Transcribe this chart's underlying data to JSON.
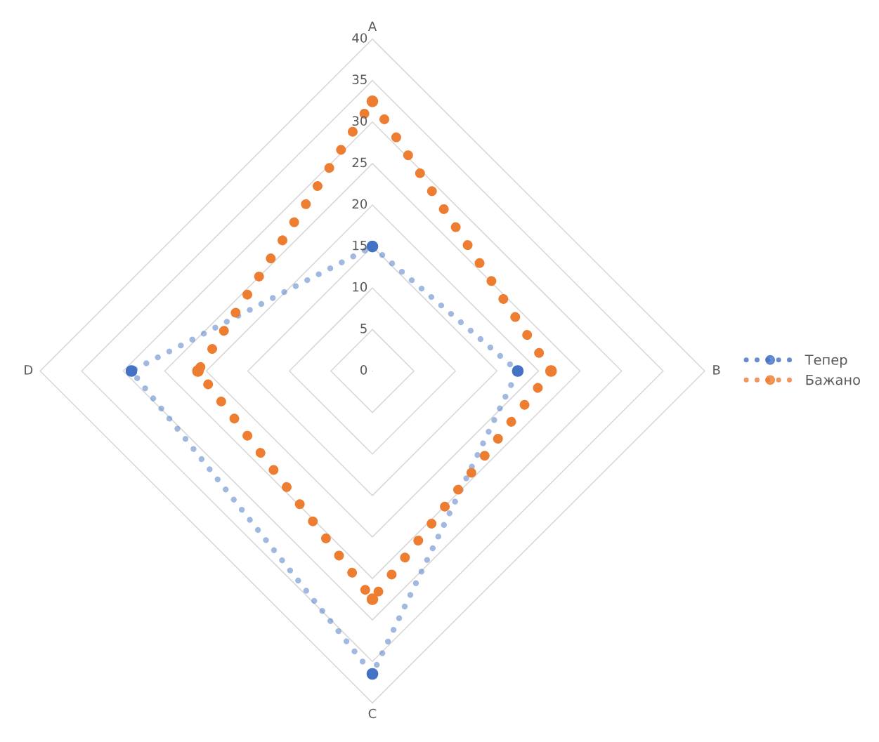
{
  "chart_data": {
    "type": "radar",
    "categories": [
      "A",
      "B",
      "C",
      "D"
    ],
    "series": [
      {
        "name": "Тепер",
        "color": "#4472c4",
        "values": [
          15,
          17.5,
          36.5,
          29
        ]
      },
      {
        "name": "Бажано",
        "color": "#ed7d31",
        "values": [
          32.5,
          21.5,
          27.5,
          21
        ]
      }
    ],
    "ylim": [
      0,
      40
    ],
    "yticks": [
      0,
      5,
      10,
      15,
      20,
      25,
      30,
      35,
      40
    ],
    "grid": true,
    "legend": "right",
    "marker": "circle",
    "line_style": "dotted"
  }
}
